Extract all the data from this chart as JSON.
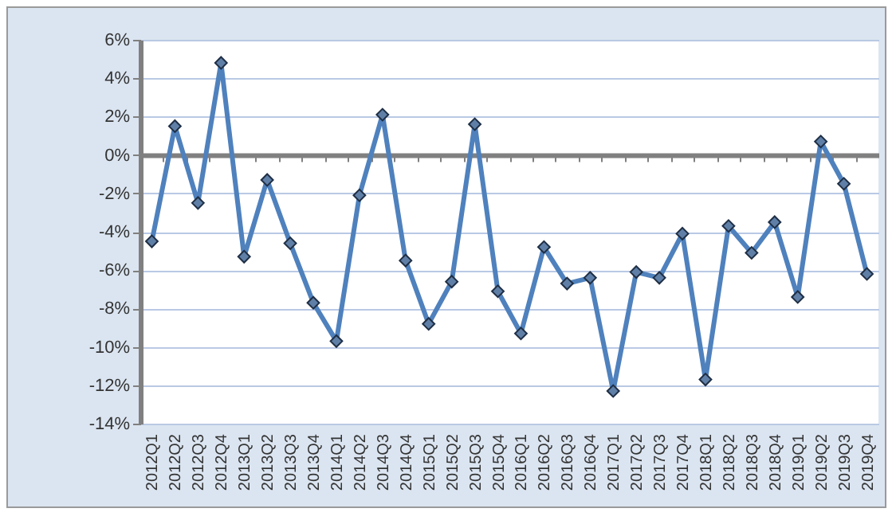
{
  "chart_data": {
    "type": "line",
    "categories": [
      "2012Q1",
      "2012Q2",
      "2012Q3",
      "2012Q4",
      "2013Q1",
      "2013Q2",
      "2013Q3",
      "2013Q4",
      "2014Q1",
      "2014Q2",
      "2014Q3",
      "2014Q4",
      "2015Q1",
      "2015Q2",
      "2015Q3",
      "2015Q4",
      "2016Q1",
      "2016Q2",
      "2016Q3",
      "2016Q4",
      "2017Q1",
      "2017Q2",
      "2017Q3",
      "2017Q4",
      "2018Q1",
      "2018Q2",
      "2018Q3",
      "2018Q4",
      "2019Q1",
      "2019Q2",
      "2019Q3",
      "2019Q4"
    ],
    "series": [
      {
        "color": "#4f81bd",
        "values": [
          -4.5,
          1.5,
          -2.5,
          4.8,
          -5.3,
          -1.3,
          -4.6,
          -7.7,
          -9.7,
          -2.1,
          2.1,
          -5.5,
          -8.8,
          -6.6,
          1.6,
          -7.1,
          -9.3,
          -4.8,
          -6.7,
          -6.4,
          -12.3,
          -6.1,
          -6.4,
          -4.1,
          -11.7,
          -3.7,
          -5.1,
          -3.5,
          -7.4,
          0.7,
          -1.5,
          -6.2
        ]
      }
    ],
    "ylim": [
      -14,
      6
    ],
    "yticks": [
      {
        "value": -14,
        "label": "-14%"
      },
      {
        "value": -12,
        "label": "-12%"
      },
      {
        "value": -10,
        "label": "-10%"
      },
      {
        "value": -8,
        "label": "-8%"
      },
      {
        "value": -6,
        "label": "-6%"
      },
      {
        "value": -4,
        "label": "-4%"
      },
      {
        "value": -2,
        "label": "-2%"
      },
      {
        "value": 0,
        "label": "0%"
      },
      {
        "value": 2,
        "label": "2%"
      },
      {
        "value": 4,
        "label": "4%"
      },
      {
        "value": 6,
        "label": "6%"
      }
    ],
    "grid": "y",
    "marker": "diamond",
    "line_style": "solid"
  }
}
